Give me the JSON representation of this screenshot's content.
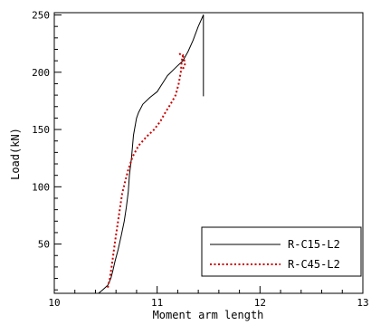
{
  "chart_data": {
    "type": "line",
    "xlabel": "Moment arm length",
    "ylabel": "Load(kN)",
    "xlim": [
      10,
      13
    ],
    "ylim": [
      7,
      252
    ],
    "x_ticks": [
      10,
      11,
      12,
      13
    ],
    "y_ticks": [
      50,
      100,
      150,
      200,
      250
    ],
    "x_minor_step": 0.2,
    "y_minor_step": 10,
    "grid": false,
    "legend_placement": "bottom-right",
    "series": [
      {
        "name": "R-C15-L2",
        "color": "#000000",
        "style": "solid",
        "points": [
          [
            10.43,
            7
          ],
          [
            10.47,
            10
          ],
          [
            10.52,
            14
          ],
          [
            10.55,
            20
          ],
          [
            10.57,
            27
          ],
          [
            10.59,
            35
          ],
          [
            10.62,
            45
          ],
          [
            10.65,
            57
          ],
          [
            10.68,
            70
          ],
          [
            10.7,
            82
          ],
          [
            10.72,
            96
          ],
          [
            10.73,
            110
          ],
          [
            10.75,
            125
          ],
          [
            10.77,
            145
          ],
          [
            10.8,
            160
          ],
          [
            10.82,
            165
          ],
          [
            10.86,
            172
          ],
          [
            10.93,
            178
          ],
          [
            11.0,
            183
          ],
          [
            11.05,
            190
          ],
          [
            11.1,
            197
          ],
          [
            11.18,
            204
          ],
          [
            11.25,
            210
          ],
          [
            11.3,
            218
          ],
          [
            11.35,
            228
          ],
          [
            11.4,
            240
          ],
          [
            11.45,
            250
          ],
          [
            11.45,
            215
          ],
          [
            11.45,
            190
          ],
          [
            11.45,
            179
          ]
        ]
      },
      {
        "name": "R-C45-L2",
        "color": "#cc0000",
        "style": "dotted",
        "points": [
          [
            10.52,
            12
          ],
          [
            10.54,
            20
          ],
          [
            10.56,
            32
          ],
          [
            10.58,
            45
          ],
          [
            10.6,
            58
          ],
          [
            10.62,
            70
          ],
          [
            10.64,
            82
          ],
          [
            10.66,
            94
          ],
          [
            10.69,
            105
          ],
          [
            10.72,
            115
          ],
          [
            10.76,
            126
          ],
          [
            10.82,
            136
          ],
          [
            10.9,
            144
          ],
          [
            10.97,
            150
          ],
          [
            11.03,
            157
          ],
          [
            11.08,
            165
          ],
          [
            11.13,
            172
          ],
          [
            11.18,
            180
          ],
          [
            11.21,
            190
          ],
          [
            11.23,
            200
          ],
          [
            11.24,
            210
          ],
          [
            11.25,
            215
          ],
          [
            11.22,
            216
          ],
          [
            11.26,
            213
          ],
          [
            11.27,
            206
          ],
          [
            11.25,
            203
          ]
        ]
      }
    ]
  }
}
